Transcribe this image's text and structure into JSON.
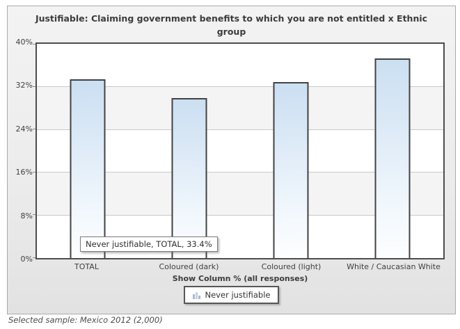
{
  "chart_data": {
    "type": "bar",
    "title": "Justifiable: Claiming government benefits to which you are not entitled x Ethnic group",
    "categories": [
      "TOTAL",
      "Coloured (dark)",
      "Coloured (light)",
      "White / Caucasian White"
    ],
    "series": [
      {
        "name": "Never justifiable",
        "values": [
          33.4,
          29.9,
          32.8,
          37.3
        ]
      }
    ],
    "xlabel": "Show Column % (all responses)",
    "ylabel": "",
    "ylim": [
      0,
      40
    ],
    "yticks": [
      0,
      8,
      16,
      24,
      32,
      40
    ],
    "ytick_suffix": "%",
    "grid": "horizontal-bands",
    "legend_position": "bottom"
  },
  "tooltip": {
    "text": "Never justifiable, TOTAL, 33.4%"
  },
  "legend": {
    "items": [
      {
        "label": "Never justifiable",
        "icon": "mini-bar-chart-icon"
      }
    ]
  },
  "footer": {
    "sample_note": "Selected sample: Mexico 2012 (2,000)"
  },
  "colors": {
    "bar_gradient_top": "#cbdff2",
    "bar_gradient_bottom": "#fdfeff",
    "bar_border": "#424242",
    "plot_border": "#4c4c4c",
    "band_alt": "#f4f4f4",
    "gridline": "#c9c9c9",
    "widget_bg": "#ececec",
    "text": "#3c3c3c"
  }
}
